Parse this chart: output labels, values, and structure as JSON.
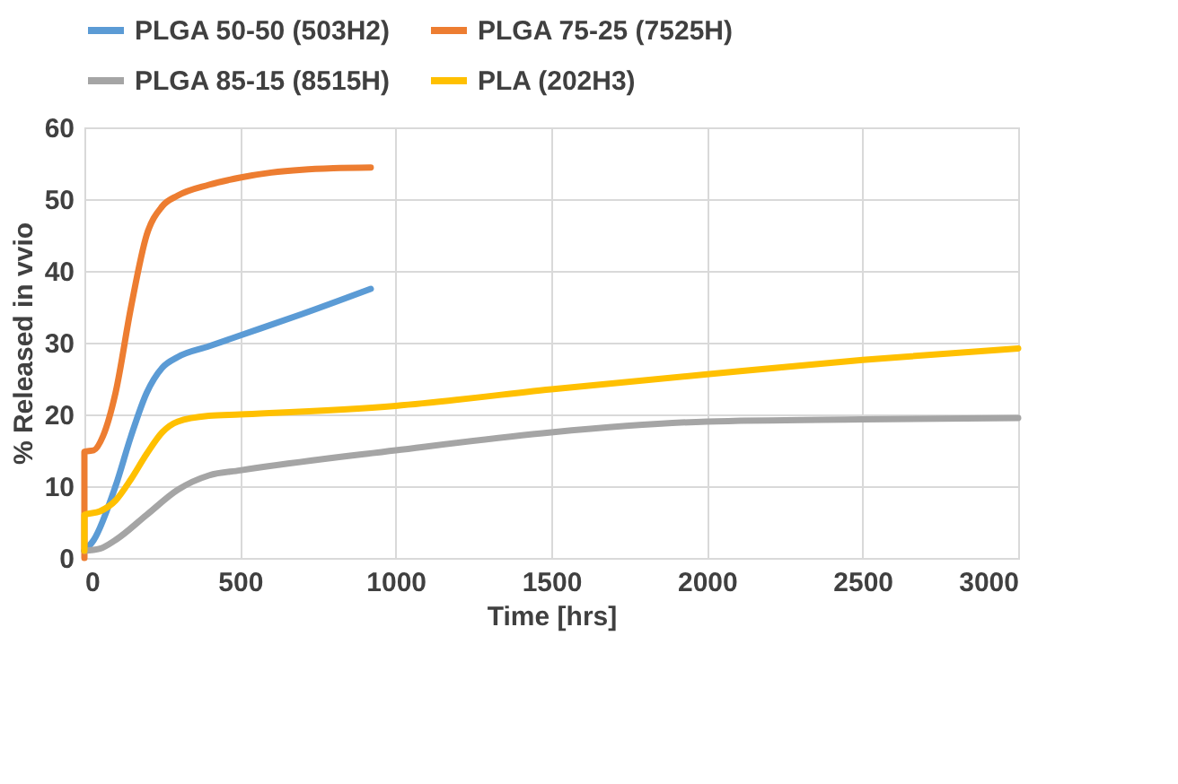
{
  "chart_data": {
    "type": "line",
    "xlabel": "Time [hrs]",
    "ylabel": "% Released in vvio",
    "xlim": [
      0,
      3000
    ],
    "xticks": [
      0,
      500,
      1000,
      1500,
      2000,
      2500,
      3000
    ],
    "ylim": [
      0,
      60
    ],
    "yticks": [
      0,
      10,
      20,
      30,
      40,
      50,
      60
    ],
    "grid": true,
    "legend": "top",
    "marker": "none",
    "line_style": "solid",
    "series": [
      {
        "name": "PLGA 50-50 (503H2)",
        "color": "#5b9bd5",
        "x": [
          0,
          30,
          100,
          150,
          200,
          250,
          300,
          400,
          500,
          700,
          920
        ],
        "values": [
          1,
          2.5,
          10,
          17,
          23,
          26.5,
          28,
          29.5,
          31,
          34,
          37.5
        ]
      },
      {
        "name": "PLGA 75-25 (7525H)",
        "color": "#ed7d31",
        "x": [
          0,
          0,
          30,
          60,
          100,
          150,
          200,
          250,
          300,
          400,
          500,
          600,
          700,
          800,
          920
        ],
        "values": [
          0,
          14.8,
          15,
          17,
          23,
          35,
          45,
          49,
          50.5,
          52,
          53,
          53.7,
          54.1,
          54.3,
          54.4
        ]
      },
      {
        "name": "PLGA 85-15 (8515H)",
        "color": "#a5a5a5",
        "x": [
          0,
          50,
          100,
          200,
          300,
          400,
          500,
          1000,
          1500,
          2000,
          2500,
          3000
        ],
        "values": [
          1,
          1.3,
          2.5,
          6,
          9.5,
          11.5,
          12.2,
          15,
          17.5,
          19,
          19.3,
          19.5
        ]
      },
      {
        "name": "PLA (202H3)",
        "color": "#ffc000",
        "x": [
          0,
          0,
          50,
          100,
          150,
          200,
          250,
          300,
          400,
          500,
          1000,
          1500,
          2000,
          2500,
          3000
        ],
        "values": [
          1,
          6,
          6.5,
          8,
          11,
          14.5,
          17.5,
          19,
          19.8,
          20,
          21.2,
          23.5,
          25.6,
          27.6,
          29.2
        ]
      }
    ]
  }
}
